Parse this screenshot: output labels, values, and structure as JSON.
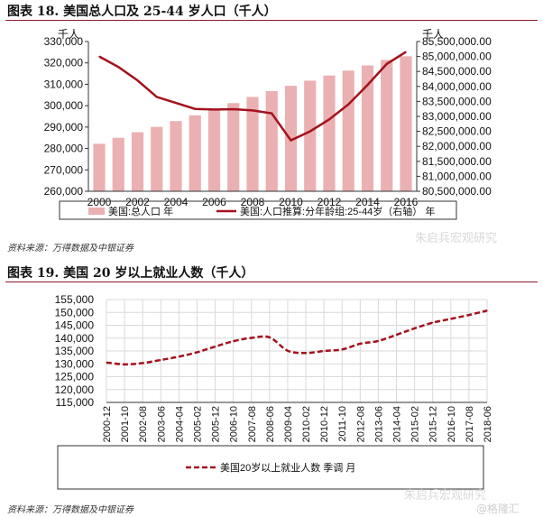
{
  "figure18": {
    "header": "图表 18. 美国总人口及 25-44 岁人口（千人）",
    "source": "资料来源：万得数据及中银证券",
    "watermark": "朱启兵宏观研究",
    "colors": {
      "bar": "#eab0b2",
      "line": "#a3121d"
    },
    "chart_data": {
      "type": "bar",
      "title": "",
      "left_unit": "千人",
      "right_unit": "千人",
      "x": [
        2000,
        2001,
        2002,
        2003,
        2004,
        2005,
        2006,
        2007,
        2008,
        2009,
        2010,
        2011,
        2012,
        2013,
        2014,
        2015,
        2016
      ],
      "x_tick_labels": [
        "2000",
        "2002",
        "2004",
        "2006",
        "2008",
        "2010",
        "2012",
        "2014",
        "2016"
      ],
      "ylim_left": [
        260000,
        330000
      ],
      "y_ticks_left": [
        260000,
        270000,
        280000,
        290000,
        300000,
        310000,
        320000,
        330000
      ],
      "y_tick_labels_left": [
        "260,000",
        "270,000",
        "280,000",
        "290,000",
        "300,000",
        "310,000",
        "320,000",
        "330,000"
      ],
      "ylim_right": [
        80500000,
        85500000
      ],
      "y_ticks_right": [
        80500000,
        81000000,
        81500000,
        82000000,
        82500000,
        83000000,
        83500000,
        84000000,
        84500000,
        85000000,
        85500000
      ],
      "y_tick_labels_right": [
        "80,500,000.00",
        "81,000,000.00",
        "81,500,000.00",
        "82,000,000.00",
        "82,500,000.00",
        "83,000,000.00",
        "83,500,000.00",
        "84,000,000.00",
        "84,500,000.00",
        "85,000,000.00",
        "85,500,000.00"
      ],
      "series": [
        {
          "name": "美国:总人口 年",
          "type": "bar",
          "axis": "left",
          "values": [
            282200,
            285000,
            287600,
            290100,
            292800,
            295500,
            298400,
            301200,
            304100,
            306800,
            309300,
            311700,
            314100,
            316400,
            318800,
            321400,
            323100
          ]
        },
        {
          "name": "美国:人口推算:分年龄组:25-44岁（右轴） 年",
          "type": "line",
          "axis": "right",
          "values": [
            85000000,
            84650000,
            84200000,
            83650000,
            83450000,
            83250000,
            83230000,
            83240000,
            83200000,
            83100000,
            82200000,
            82500000,
            82900000,
            83400000,
            84050000,
            84750000,
            85150000
          ]
        }
      ],
      "legend_position": "bottom",
      "grid": false
    }
  },
  "figure19": {
    "header": "图表 19. 美国 20 岁以上就业人数（千人）",
    "source": "资料来源：万得数据及中银证券",
    "watermark": "朱启兵宏观研究",
    "watermark2": "@格隆汇",
    "colors": {
      "line": "#a3121d",
      "grid": "#d9d9d9"
    },
    "chart_data": {
      "type": "line",
      "title": "",
      "x_tick_labels": [
        "2000-12",
        "2001-10",
        "2002-08",
        "2003-06",
        "2004-04",
        "2005-02",
        "2005-12",
        "2006-10",
        "2007-08",
        "2008-06",
        "2009-04",
        "2010-02",
        "2010-12",
        "2011-10",
        "2012-08",
        "2013-06",
        "2014-04",
        "2015-02",
        "2015-12",
        "2016-10",
        "2017-08",
        "2018-06"
      ],
      "ylim": [
        115000,
        155000
      ],
      "y_ticks": [
        115000,
        120000,
        125000,
        130000,
        135000,
        140000,
        145000,
        150000,
        155000
      ],
      "y_tick_labels": [
        "115,000",
        "120,000",
        "125,000",
        "130,000",
        "135,000",
        "140,000",
        "145,000",
        "150,000",
        "155,000"
      ],
      "series": [
        {
          "name": "美国20岁以上就业人数 季调 月",
          "x": [
            "2000-12",
            "2001-10",
            "2002-08",
            "2003-06",
            "2004-04",
            "2005-02",
            "2005-12",
            "2006-10",
            "2007-08",
            "2008-06",
            "2009-04",
            "2010-02",
            "2010-12",
            "2011-10",
            "2012-08",
            "2013-06",
            "2014-04",
            "2015-02",
            "2015-12",
            "2016-10",
            "2017-08",
            "2018-06"
          ],
          "values": [
            130500,
            129800,
            130300,
            131500,
            132800,
            134500,
            136700,
            138800,
            140100,
            140300,
            135100,
            134200,
            135000,
            135600,
            137800,
            138900,
            141300,
            143800,
            146000,
            147500,
            149000,
            150700
          ]
        }
      ],
      "legend_position": "bottom",
      "grid": true
    }
  }
}
